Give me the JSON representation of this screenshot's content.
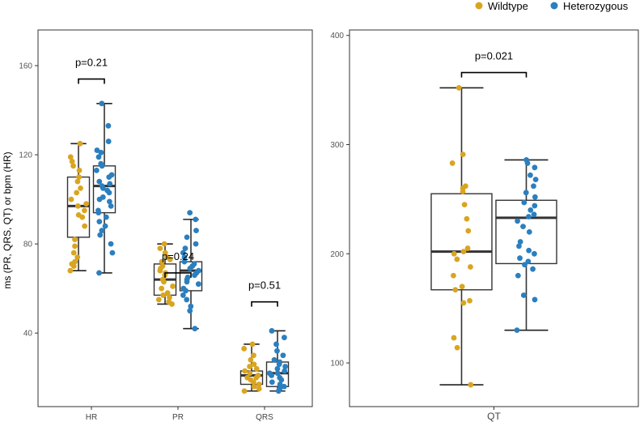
{
  "colors": {
    "wildtype": "#D9A521",
    "heterozygous": "#2B7FBF"
  },
  "legend": {
    "position": "top-right",
    "items": [
      {
        "key": "wildtype",
        "label": "Wildtype"
      },
      {
        "key": "heterozygous",
        "label": "Heterozygous"
      }
    ]
  },
  "chart_data": [
    {
      "type": "boxplot",
      "ylabel": "ms (PR, QRS, QT) or bpm (HR)",
      "ylim": [
        7,
        176
      ],
      "yticks": [
        40,
        80,
        120,
        160
      ],
      "categories": [
        "HR",
        "PR",
        "QRS"
      ],
      "series": [
        {
          "name": "Wildtype",
          "colorKey": "wildtype",
          "boxes": [
            {
              "category": "HR",
              "min": 68,
              "q1": 83,
              "median": 97,
              "q3": 110,
              "max": 125,
              "points": [
                68,
                70,
                71,
                72,
                74,
                76,
                79,
                82,
                88,
                92,
                93,
                95,
                97,
                98,
                100,
                103,
                105,
                108,
                110,
                113,
                115,
                117,
                119,
                125
              ]
            },
            {
              "category": "PR",
              "min": 53,
              "q1": 57,
              "median": 64,
              "q3": 71,
              "max": 80,
              "points": [
                53,
                54,
                55,
                56,
                57,
                58,
                60,
                61,
                63,
                64,
                66,
                67,
                68,
                69,
                70,
                72,
                73,
                74,
                76,
                78,
                80
              ]
            },
            {
              "category": "QRS",
              "min": 14,
              "q1": 17,
              "median": 21,
              "q3": 23,
              "max": 35,
              "points": [
                14,
                15,
                16,
                17,
                18,
                19,
                20,
                20,
                21,
                22,
                23,
                24,
                25,
                26,
                28,
                30,
                33,
                35
              ]
            }
          ]
        },
        {
          "name": "Heterozygous",
          "colorKey": "heterozygous",
          "boxes": [
            {
              "category": "HR",
              "min": 67,
              "q1": 94,
              "median": 106,
              "q3": 115,
              "max": 143,
              "points": [
                67,
                76,
                80,
                84,
                86,
                88,
                90,
                92,
                94,
                95,
                97,
                99,
                100,
                101,
                103,
                104,
                105,
                106,
                107,
                108,
                110,
                111,
                113,
                115,
                116,
                119,
                121,
                122,
                126,
                133,
                143
              ]
            },
            {
              "category": "PR",
              "min": 42,
              "q1": 59,
              "median": 68,
              "q3": 72,
              "max": 91,
              "points": [
                42,
                50,
                52,
                55,
                57,
                59,
                60,
                62,
                63,
                64,
                65,
                66,
                67,
                68,
                69,
                70,
                71,
                72,
                74,
                76,
                78,
                80,
                83,
                86,
                91,
                94
              ]
            },
            {
              "category": "QRS",
              "min": 14,
              "q1": 16,
              "median": 22,
              "q3": 27,
              "max": 41,
              "points": [
                14,
                15,
                16,
                17,
                18,
                19,
                20,
                21,
                22,
                22,
                23,
                24,
                25,
                26,
                27,
                28,
                30,
                32,
                35,
                38,
                41
              ]
            }
          ]
        }
      ],
      "annotations": [
        {
          "category": "HR",
          "text": "p=0.21",
          "bracket_y": 154
        },
        {
          "category": "PR",
          "text": "p=0.24",
          "bracket_y": 67
        },
        {
          "category": "QRS",
          "text": "p=0.51",
          "bracket_y": 54
        }
      ]
    },
    {
      "type": "boxplot",
      "ylabel": "",
      "ylim": [
        60,
        405
      ],
      "yticks": [
        100,
        200,
        300,
        400
      ],
      "categories": [
        "QT"
      ],
      "series": [
        {
          "name": "Wildtype",
          "colorKey": "wildtype",
          "boxes": [
            {
              "category": "QT",
              "min": 80,
              "q1": 167,
              "median": 202,
              "q3": 255,
              "max": 352,
              "points": [
                80,
                114,
                123,
                155,
                157,
                167,
                170,
                180,
                188,
                195,
                200,
                202,
                205,
                221,
                232,
                245,
                257,
                260,
                262,
                283,
                291,
                352
              ]
            }
          ]
        },
        {
          "name": "Heterozygous",
          "colorKey": "heterozygous",
          "boxes": [
            {
              "category": "QT",
              "min": 130,
              "q1": 191,
              "median": 233,
              "q3": 249,
              "max": 286,
              "points": [
                130,
                158,
                162,
                180,
                186,
                190,
                193,
                196,
                200,
                203,
                207,
                211,
                220,
                225,
                230,
                234,
                236,
                240,
                244,
                247,
                252,
                256,
                262,
                268,
                272,
                279,
                283,
                286
              ]
            }
          ]
        }
      ],
      "annotations": [
        {
          "category": "QT",
          "text": "p=0.021",
          "bracket_y": 366
        }
      ]
    }
  ]
}
